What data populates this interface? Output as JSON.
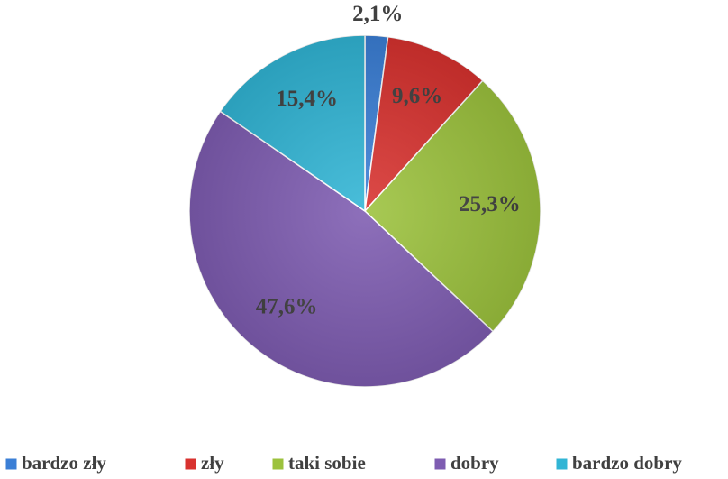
{
  "chart_data": {
    "type": "pie",
    "categories": [
      "bardzo zły",
      "zły",
      "taki sobie",
      "dobry",
      "bardzo dobry"
    ],
    "values": [
      2.1,
      9.6,
      25.3,
      47.6,
      15.4
    ],
    "value_labels": [
      "2,1%",
      "9,6%",
      "25,3%",
      "47,6%",
      "15,4%"
    ],
    "colors": [
      "#3b7fd6",
      "#d8322f",
      "#9cc23d",
      "#7e5cb1",
      "#31b5d5"
    ],
    "legend": "bottom"
  }
}
